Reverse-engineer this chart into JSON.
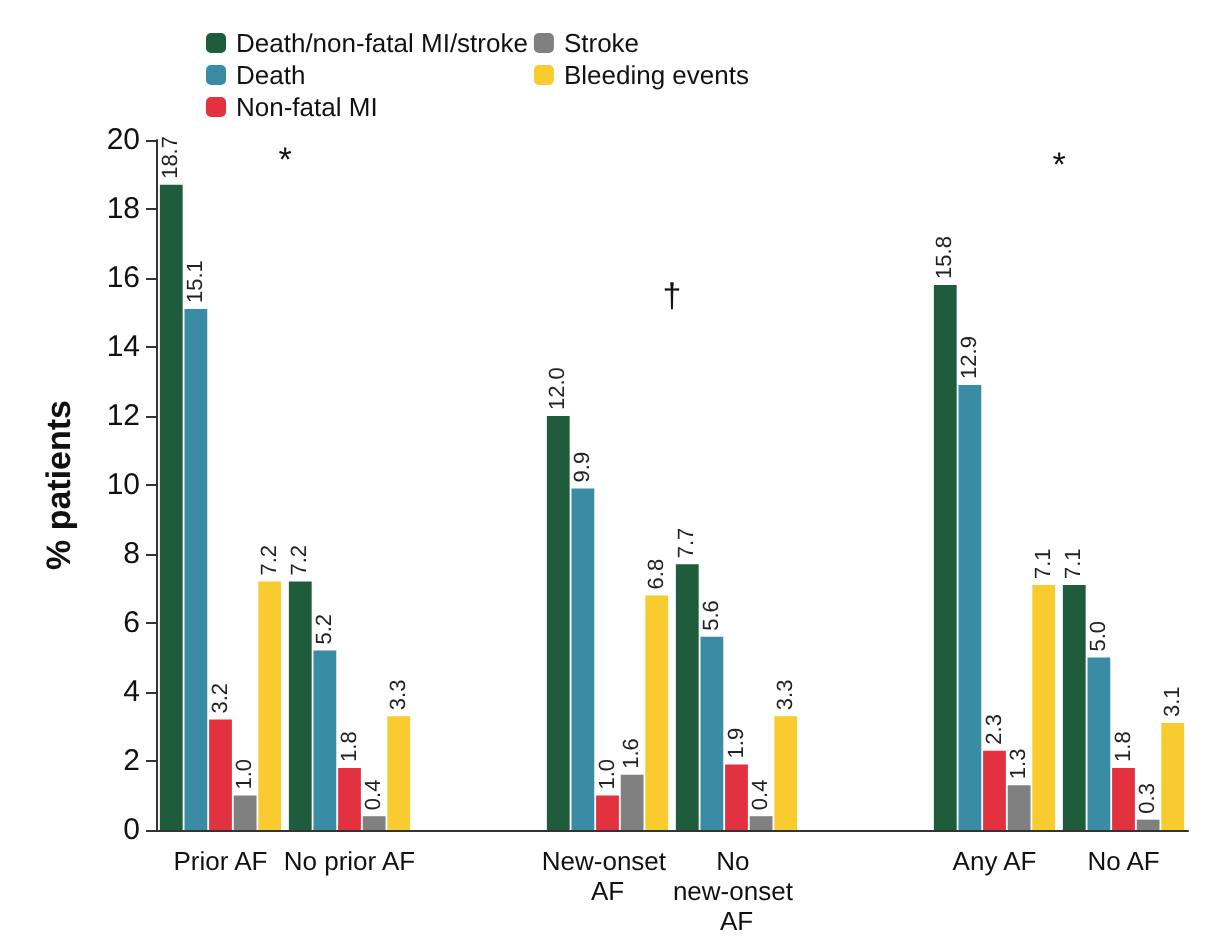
{
  "chart_data": {
    "type": "bar",
    "ylabel": "% patients",
    "categories": [
      "Prior AF",
      "No prior AF",
      null,
      "New-onset AF",
      "No new-onset AF",
      null,
      "Any AF",
      "No AF"
    ],
    "series": [
      {
        "name": "Death/non-fatal MI/stroke",
        "color": "#1e5c3c",
        "values": [
          18.7,
          7.2,
          null,
          12.0,
          7.7,
          null,
          15.8,
          7.1
        ],
        "value_labels": [
          "18.7",
          "7.2",
          null,
          "12.0",
          "7.7",
          null,
          "15.8",
          "7.1"
        ]
      },
      {
        "name": "Death",
        "color": "#3a8ca5",
        "values": [
          15.1,
          5.2,
          null,
          9.9,
          5.6,
          null,
          12.9,
          5.0
        ],
        "value_labels": [
          "15.1",
          "5.2",
          null,
          "9.9",
          "5.6",
          null,
          "12.9",
          "5.0"
        ]
      },
      {
        "name": "Non-fatal MI",
        "color": "#e3323f",
        "values": [
          3.2,
          1.8,
          null,
          1.0,
          1.9,
          null,
          2.3,
          1.8
        ],
        "value_labels": [
          "3.2",
          "1.8",
          null,
          "1.0",
          "1.9",
          null,
          "2.3",
          "1.8"
        ]
      },
      {
        "name": "Stroke",
        "color": "#808080",
        "values": [
          1.0,
          0.4,
          null,
          1.6,
          0.4,
          null,
          1.3,
          0.3
        ],
        "value_labels": [
          "1.0",
          "0.4",
          null,
          "1.6",
          "0.4",
          null,
          "1.3",
          "0.3"
        ]
      },
      {
        "name": "Bleeding events",
        "color": "#f8cb2f",
        "values": [
          7.2,
          3.3,
          null,
          6.8,
          3.3,
          null,
          7.1,
          3.1
        ],
        "value_labels": [
          "7.2",
          "3.3",
          null,
          "6.8",
          "3.3",
          null,
          "7.1",
          "3.1"
        ]
      }
    ],
    "ylim": [
      0,
      20
    ],
    "yticks": [
      0,
      2,
      4,
      6,
      8,
      10,
      12,
      14,
      16,
      18,
      20
    ],
    "grid": false,
    "legend": "top",
    "annotations": [
      "*",
      "†",
      "*"
    ]
  }
}
